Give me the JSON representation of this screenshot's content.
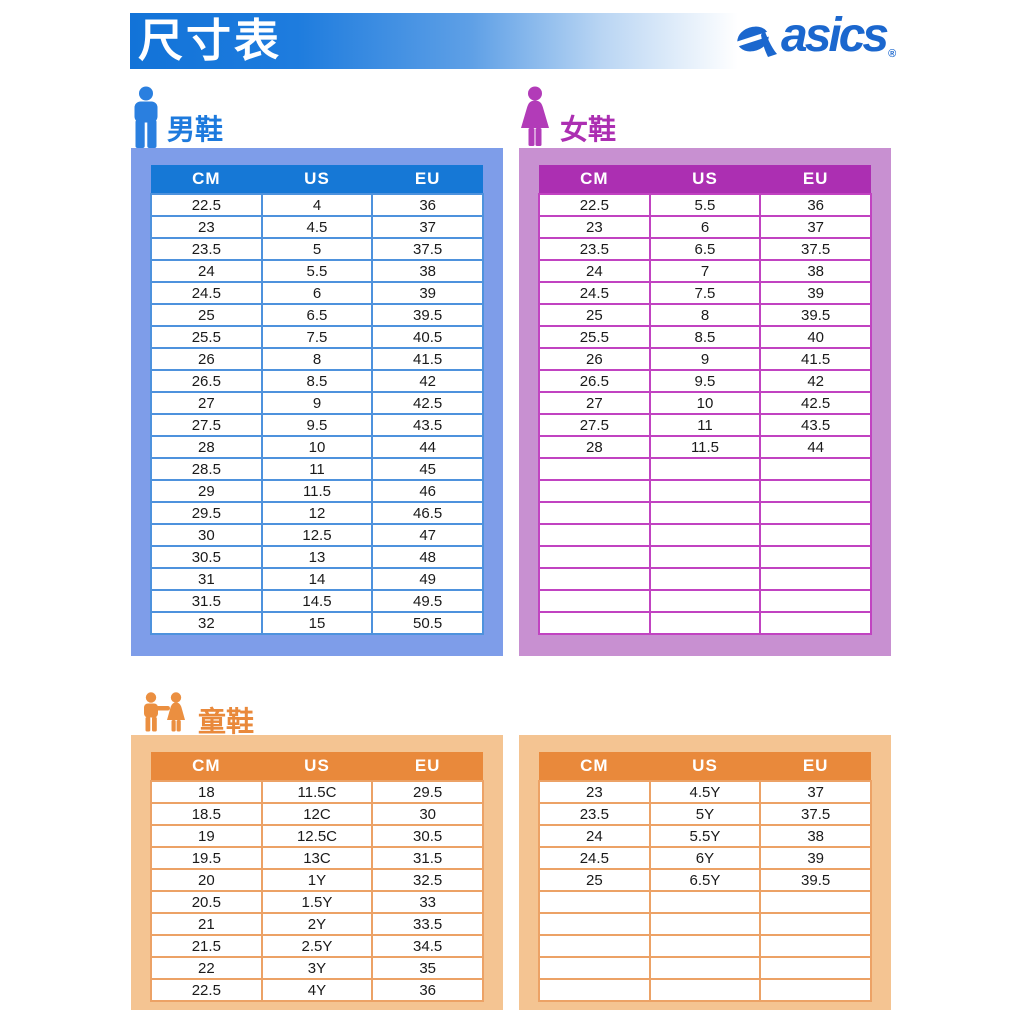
{
  "header": {
    "title": "尺寸表",
    "brand": "asics",
    "registered_mark": "®"
  },
  "colors": {
    "banner_blue": "#1273D8",
    "logo_blue": "#1B67CE",
    "men_primary": "#1678D6",
    "men_container": "#7E9DE9",
    "men_border": "#4E92DD",
    "women_primary": "#AC2FB2",
    "women_container": "#C890D1",
    "women_border": "#C143C1",
    "kids_primary": "#E9893B",
    "kids_container": "#F4C492",
    "kids_border": "#ECA266",
    "cell_text": "#1A1A1A"
  },
  "icons": {
    "men": "man-icon",
    "women": "woman-icon",
    "kids": "children-icon",
    "brand": "asics-logo-mark-icon"
  },
  "sections": {
    "men": {
      "label": "男鞋",
      "table": {
        "headers": [
          "CM",
          "US",
          "EU"
        ],
        "rows": [
          [
            "22.5",
            "4",
            "36"
          ],
          [
            "23",
            "4.5",
            "37"
          ],
          [
            "23.5",
            "5",
            "37.5"
          ],
          [
            "24",
            "5.5",
            "38"
          ],
          [
            "24.5",
            "6",
            "39"
          ],
          [
            "25",
            "6.5",
            "39.5"
          ],
          [
            "25.5",
            "7.5",
            "40.5"
          ],
          [
            "26",
            "8",
            "41.5"
          ],
          [
            "26.5",
            "8.5",
            "42"
          ],
          [
            "27",
            "9",
            "42.5"
          ],
          [
            "27.5",
            "9.5",
            "43.5"
          ],
          [
            "28",
            "10",
            "44"
          ],
          [
            "28.5",
            "11",
            "45"
          ],
          [
            "29",
            "11.5",
            "46"
          ],
          [
            "29.5",
            "12",
            "46.5"
          ],
          [
            "30",
            "12.5",
            "47"
          ],
          [
            "30.5",
            "13",
            "48"
          ],
          [
            "31",
            "14",
            "49"
          ],
          [
            "31.5",
            "14.5",
            "49.5"
          ],
          [
            "32",
            "15",
            "50.5"
          ]
        ],
        "empty_rows": 0
      }
    },
    "women": {
      "label": "女鞋",
      "table": {
        "headers": [
          "CM",
          "US",
          "EU"
        ],
        "rows": [
          [
            "22.5",
            "5.5",
            "36"
          ],
          [
            "23",
            "6",
            "37"
          ],
          [
            "23.5",
            "6.5",
            "37.5"
          ],
          [
            "24",
            "7",
            "38"
          ],
          [
            "24.5",
            "7.5",
            "39"
          ],
          [
            "25",
            "8",
            "39.5"
          ],
          [
            "25.5",
            "8.5",
            "40"
          ],
          [
            "26",
            "9",
            "41.5"
          ],
          [
            "26.5",
            "9.5",
            "42"
          ],
          [
            "27",
            "10",
            "42.5"
          ],
          [
            "27.5",
            "11",
            "43.5"
          ],
          [
            "28",
            "11.5",
            "44"
          ]
        ],
        "empty_rows": 8
      }
    },
    "kids": {
      "label": "童鞋",
      "table_left": {
        "headers": [
          "CM",
          "US",
          "EU"
        ],
        "rows": [
          [
            "18",
            "11.5C",
            "29.5"
          ],
          [
            "18.5",
            "12C",
            "30"
          ],
          [
            "19",
            "12.5C",
            "30.5"
          ],
          [
            "19.5",
            "13C",
            "31.5"
          ],
          [
            "20",
            "1Y",
            "32.5"
          ],
          [
            "20.5",
            "1.5Y",
            "33"
          ],
          [
            "21",
            "2Y",
            "33.5"
          ],
          [
            "21.5",
            "2.5Y",
            "34.5"
          ],
          [
            "22",
            "3Y",
            "35"
          ],
          [
            "22.5",
            "4Y",
            "36"
          ]
        ],
        "empty_rows": 0
      },
      "table_right": {
        "headers": [
          "CM",
          "US",
          "EU"
        ],
        "rows": [
          [
            "23",
            "4.5Y",
            "37"
          ],
          [
            "23.5",
            "5Y",
            "37.5"
          ],
          [
            "24",
            "5.5Y",
            "38"
          ],
          [
            "24.5",
            "6Y",
            "39"
          ],
          [
            "25",
            "6.5Y",
            "39.5"
          ]
        ],
        "empty_rows": 5
      }
    }
  }
}
